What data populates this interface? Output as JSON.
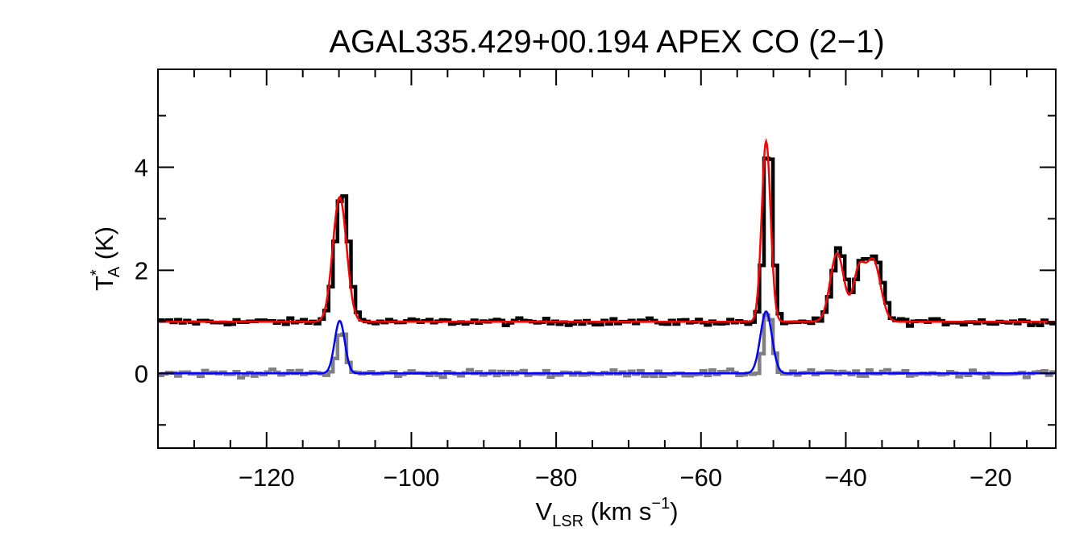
{
  "chart_data": {
    "type": "line",
    "title": "AGAL335.429+00.194  APEX CO (2−1)",
    "xlabel": {
      "main": "V",
      "sub": "LSR",
      "unit_open": " (km s",
      "sup": "−1",
      "unit_close": ")"
    },
    "ylabel": {
      "main": "T",
      "sup": "*",
      "sub": "A",
      "unit": " (K)"
    },
    "xlim": [
      -135,
      -11
    ],
    "ylim": [
      -1.45,
      5.9
    ],
    "x_ticks": [
      -120,
      -100,
      -80,
      -60,
      -40,
      -20
    ],
    "x_tick_labels": [
      "−120",
      "−100",
      "−80",
      "−60",
      "−40",
      "−20"
    ],
    "x_minor_step": 5,
    "y_ticks": [
      0,
      2,
      4
    ],
    "y_tick_labels": [
      "0",
      "2",
      "4"
    ],
    "y_minor_step": 1,
    "grid": false,
    "legend": "none",
    "series": [
      {
        "role": "spectrum",
        "style": "step",
        "color": "#000000",
        "baseline": 1.0,
        "components": [
          {
            "center": -109.9,
            "amp": 2.55,
            "sigma": 0.95
          },
          {
            "center": -51.0,
            "amp": 3.6,
            "sigma": 0.6
          },
          {
            "center": -41.2,
            "amp": 1.4,
            "sigma": 0.95
          },
          {
            "center": -38.2,
            "amp": 1.0,
            "sigma": 0.8
          },
          {
            "center": -36.2,
            "amp": 1.25,
            "sigma": 1.0
          }
        ]
      },
      {
        "role": "fit",
        "style": "line",
        "color": "#ff0000",
        "baseline": 1.0,
        "components": [
          {
            "center": -109.9,
            "amp": 2.42,
            "sigma": 0.95
          },
          {
            "center": -51.0,
            "amp": 3.5,
            "sigma": 0.62
          },
          {
            "center": -41.2,
            "amp": 1.33,
            "sigma": 0.95
          },
          {
            "center": -38.2,
            "amp": 0.95,
            "sigma": 0.8
          },
          {
            "center": -36.2,
            "amp": 1.18,
            "sigma": 1.0
          }
        ]
      },
      {
        "role": "spectrum",
        "style": "step",
        "color": "#808080",
        "baseline": 0.0,
        "components": [
          {
            "center": -109.9,
            "amp": 0.85,
            "sigma": 0.6
          },
          {
            "center": -51.0,
            "amp": 1.25,
            "sigma": 0.6
          }
        ]
      },
      {
        "role": "fit",
        "style": "line",
        "color": "#0000ff",
        "baseline": 0.0,
        "components": [
          {
            "center": -109.9,
            "amp": 1.02,
            "sigma": 0.7
          },
          {
            "center": -51.0,
            "amp": 1.2,
            "sigma": 0.8
          }
        ]
      }
    ]
  }
}
